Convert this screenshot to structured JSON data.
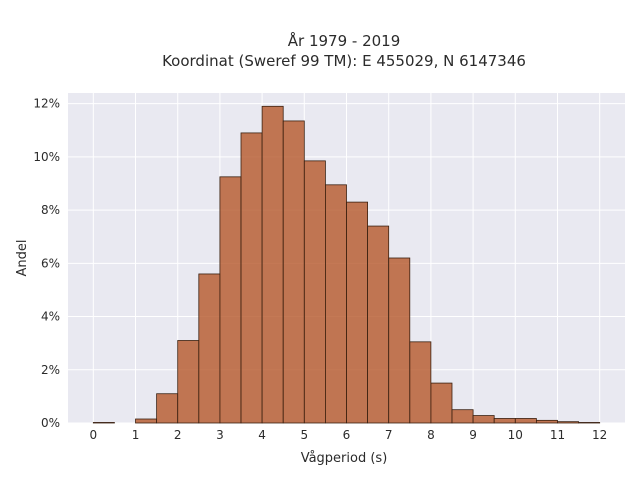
{
  "chart_data": {
    "type": "bar",
    "title": "År 1979 - 2019",
    "subtitle": "Koordinat (Sweref 99 TM): E 455029, N 6147346",
    "xlabel": "Vågperiod (s)",
    "ylabel": "Andel",
    "xlim": [
      -0.6,
      12.6
    ],
    "ylim": [
      0,
      12.4
    ],
    "x_ticks": [
      "0",
      "1",
      "2",
      "3",
      "4",
      "5",
      "6",
      "7",
      "8",
      "9",
      "10",
      "11",
      "12"
    ],
    "y_ticks": [
      "0%",
      "2%",
      "4%",
      "6%",
      "8%",
      "10%",
      "12%"
    ],
    "bin_width": 0.5,
    "bins": [
      {
        "x0": 0.0,
        "x1": 0.5,
        "value": 0.02
      },
      {
        "x0": 1.0,
        "x1": 1.5,
        "value": 0.15
      },
      {
        "x0": 1.5,
        "x1": 2.0,
        "value": 1.1
      },
      {
        "x0": 2.0,
        "x1": 2.5,
        "value": 3.1
      },
      {
        "x0": 2.5,
        "x1": 3.0,
        "value": 5.6
      },
      {
        "x0": 3.0,
        "x1": 3.5,
        "value": 9.25
      },
      {
        "x0": 3.5,
        "x1": 4.0,
        "value": 10.9
      },
      {
        "x0": 4.0,
        "x1": 4.5,
        "value": 11.9
      },
      {
        "x0": 4.5,
        "x1": 5.0,
        "value": 11.35
      },
      {
        "x0": 5.0,
        "x1": 5.5,
        "value": 9.85
      },
      {
        "x0": 5.5,
        "x1": 6.0,
        "value": 8.95
      },
      {
        "x0": 6.0,
        "x1": 6.5,
        "value": 8.3
      },
      {
        "x0": 6.5,
        "x1": 7.0,
        "value": 7.4
      },
      {
        "x0": 7.0,
        "x1": 7.5,
        "value": 6.2
      },
      {
        "x0": 7.5,
        "x1": 8.0,
        "value": 3.05
      },
      {
        "x0": 8.0,
        "x1": 8.5,
        "value": 1.5
      },
      {
        "x0": 8.5,
        "x1": 9.0,
        "value": 0.5
      },
      {
        "x0": 9.0,
        "x1": 9.5,
        "value": 0.28
      },
      {
        "x0": 9.5,
        "x1": 10.0,
        "value": 0.17
      },
      {
        "x0": 10.0,
        "x1": 10.5,
        "value": 0.17
      },
      {
        "x0": 10.5,
        "x1": 11.0,
        "value": 0.1
      },
      {
        "x0": 11.0,
        "x1": 11.5,
        "value": 0.05
      },
      {
        "x0": 11.5,
        "x1": 12.0,
        "value": 0.02
      }
    ],
    "grid": true,
    "colors": {
      "bar_fill": "#b5582a",
      "bar_stroke": "#3a2010",
      "plot_background": "#e9e9f1",
      "grid": "#ffffff"
    }
  }
}
